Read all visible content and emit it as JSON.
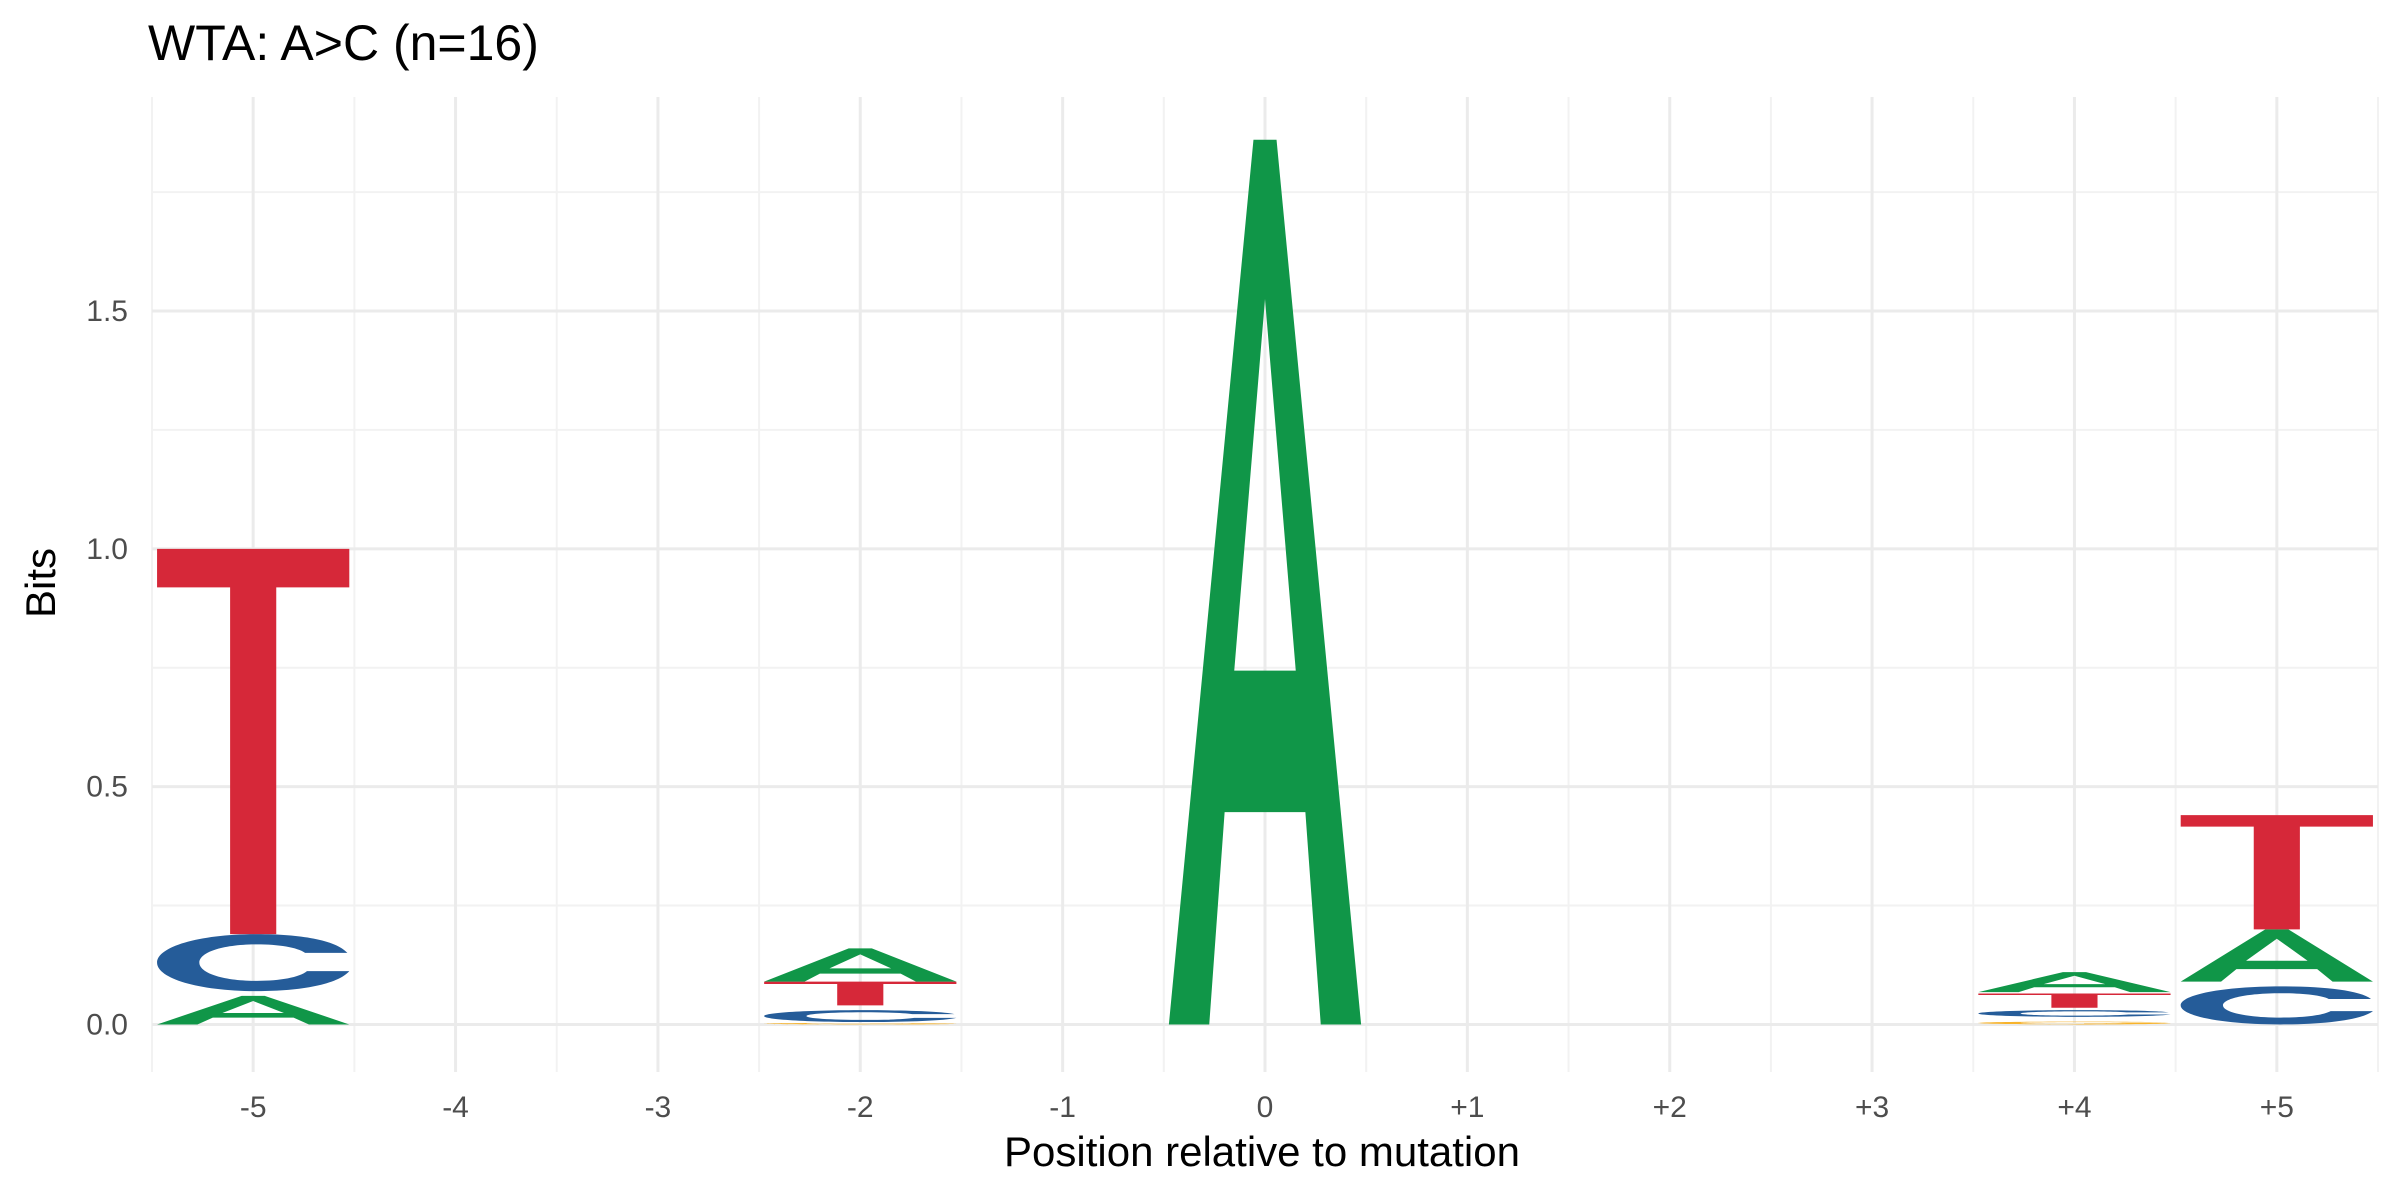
{
  "chart_data": {
    "type": "sequence-logo",
    "title": "WTA: A>C (n=16)",
    "xlabel": "Position relative to mutation",
    "ylabel": "Bits",
    "ylim": [
      -0.1,
      1.95
    ],
    "yticks": [
      0.0,
      0.5,
      1.0,
      1.5
    ],
    "ytick_labels": [
      "0.0",
      "0.5",
      "1.0",
      "1.5"
    ],
    "xlim": [
      -5.5,
      5.5
    ],
    "categories": [
      "-5",
      "-4",
      "-3",
      "-2",
      "-1",
      "0",
      "+1",
      "+2",
      "+3",
      "+4",
      "+5"
    ],
    "grid": true,
    "legend": "none",
    "colors": {
      "A": "#109648",
      "C": "#255c99",
      "G": "#f7b32b",
      "T": "#d62839"
    },
    "positions": [
      {
        "label": "-5",
        "letters": [
          {
            "base": "A",
            "from": 0.0,
            "to": 0.06
          },
          {
            "base": "C",
            "from": 0.07,
            "to": 0.19
          },
          {
            "base": "T",
            "from": 0.19,
            "to": 1.0
          }
        ]
      },
      {
        "label": "-4",
        "letters": []
      },
      {
        "label": "-3",
        "letters": []
      },
      {
        "label": "-2",
        "letters": [
          {
            "base": "G",
            "from": 0.0,
            "to": 0.003
          },
          {
            "base": "C",
            "from": 0.005,
            "to": 0.03
          },
          {
            "base": "T",
            "from": 0.04,
            "to": 0.09
          },
          {
            "base": "A",
            "from": 0.09,
            "to": 0.16
          }
        ]
      },
      {
        "label": "-1",
        "letters": []
      },
      {
        "label": "0",
        "letters": [
          {
            "base": "A",
            "from": 0.0,
            "to": 1.86
          }
        ]
      },
      {
        "label": "+1",
        "letters": []
      },
      {
        "label": "+2",
        "letters": []
      },
      {
        "label": "+3",
        "letters": []
      },
      {
        "label": "+4",
        "letters": [
          {
            "base": "G",
            "from": 0.0,
            "to": 0.006
          },
          {
            "base": "C",
            "from": 0.016,
            "to": 0.03
          },
          {
            "base": "T",
            "from": 0.035,
            "to": 0.065
          },
          {
            "base": "A",
            "from": 0.068,
            "to": 0.11
          }
        ]
      },
      {
        "label": "+5",
        "letters": [
          {
            "base": "C",
            "from": 0.0,
            "to": 0.08
          },
          {
            "base": "A",
            "from": 0.09,
            "to": 0.2
          },
          {
            "base": "T",
            "from": 0.2,
            "to": 0.44
          }
        ]
      }
    ]
  }
}
